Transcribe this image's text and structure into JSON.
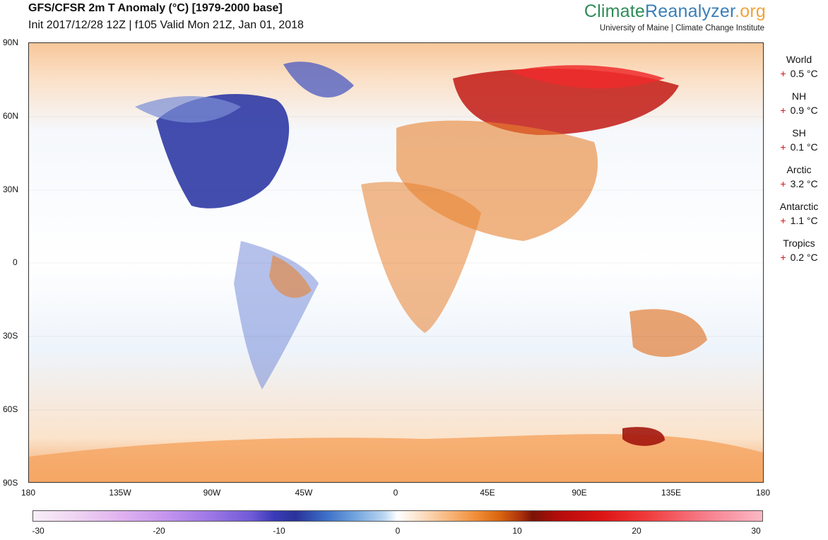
{
  "header": {
    "title": "GFS/CFSR 2m T Anomaly (°C) [1979-2000 base]",
    "subtitle": "Init 2017/12/28 12Z | f105 Valid Mon 21Z, Jan 01, 2018",
    "brand_part1": "Climate",
    "brand_part2": "Reanalyzer",
    "brand_part3": ".org",
    "brand_sub": "University of Maine | Climate Change Institute"
  },
  "axes": {
    "lat_labels": [
      "90N",
      "60N",
      "30N",
      "0",
      "30S",
      "60S",
      "90S"
    ],
    "lon_labels": [
      "180",
      "135W",
      "90W",
      "45W",
      "0",
      "45E",
      "90E",
      "135E",
      "180"
    ]
  },
  "regions": [
    {
      "name": "World",
      "sign": "+",
      "value": "0.5 °C"
    },
    {
      "name": "NH",
      "sign": "+",
      "value": "0.9 °C"
    },
    {
      "name": "SH",
      "sign": "+",
      "value": "0.1 °C"
    },
    {
      "name": "Arctic",
      "sign": "+",
      "value": "3.2 °C"
    },
    {
      "name": "Antarctic",
      "sign": "+",
      "value": "1.1 °C"
    },
    {
      "name": "Tropics",
      "sign": "+",
      "value": "0.2 °C"
    }
  ],
  "colorbar": {
    "ticks": [
      "-30",
      "-20",
      "-10",
      "0",
      "10",
      "20",
      "30"
    ]
  }
}
